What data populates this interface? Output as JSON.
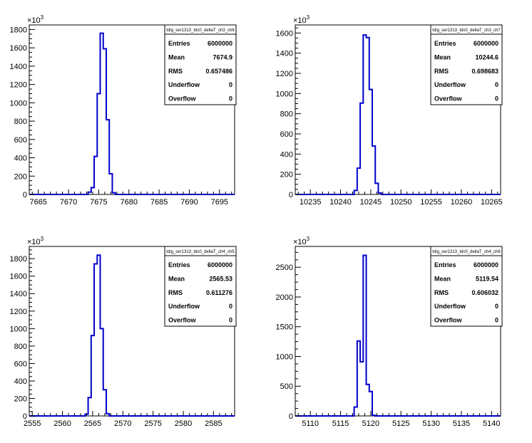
{
  "chart_data": [
    {
      "type": "histogram",
      "stats": {
        "title": "tdig_ser1313_tdc0_deltaT_ch3_ch6",
        "rows": [
          {
            "label": "Entries",
            "value": "6000000"
          },
          {
            "label": "Mean",
            "value": "7674.9"
          },
          {
            "label": "RMS",
            "value": "0.657486"
          },
          {
            "label": "Underflow",
            "value": "0"
          },
          {
            "label": "Overflow",
            "value": "0"
          }
        ]
      },
      "y_exponent": "10",
      "y_exponent_power": "3",
      "xlim": [
        7663.5,
        7697.5
      ],
      "ylim": [
        0,
        1850
      ],
      "xticks": [
        7665,
        7670,
        7675,
        7680,
        7685,
        7690,
        7695
      ],
      "yticks": [
        0,
        200,
        400,
        600,
        800,
        1000,
        1200,
        1400,
        1600,
        1800
      ],
      "bin_width": 0.5,
      "bins": [
        {
          "x": 7673.5,
          "y": 25
        },
        {
          "x": 7674.0,
          "y": 75
        },
        {
          "x": 7674.5,
          "y": 415
        },
        {
          "x": 7675.0,
          "y": 1100
        },
        {
          "x": 7675.5,
          "y": 1760
        },
        {
          "x": 7676.0,
          "y": 1590
        },
        {
          "x": 7676.5,
          "y": 815
        },
        {
          "x": 7677.0,
          "y": 225
        },
        {
          "x": 7677.5,
          "y": 18
        }
      ]
    },
    {
      "type": "histogram",
      "stats": {
        "title": "tdig_ser1313_tdc0_deltaT_ch3_ch7",
        "rows": [
          {
            "label": "Entries",
            "value": "6000000"
          },
          {
            "label": "Mean",
            "value": "10244.6"
          },
          {
            "label": "RMS",
            "value": "0.698683"
          },
          {
            "label": "Underflow",
            "value": "0"
          },
          {
            "label": "Overflow",
            "value": "0"
          }
        ]
      },
      "y_exponent": "10",
      "y_exponent_power": "3",
      "xlim": [
        10232.5,
        10266.5
      ],
      "ylim": [
        0,
        1680
      ],
      "xticks": [
        10235,
        10240,
        10245,
        10250,
        10255,
        10260,
        10265
      ],
      "yticks": [
        0,
        200,
        400,
        600,
        800,
        1000,
        1200,
        1400,
        1600
      ],
      "bin_width": 0.5,
      "bins": [
        {
          "x": 10242.5,
          "y": 40
        },
        {
          "x": 10243.0,
          "y": 260
        },
        {
          "x": 10243.5,
          "y": 905
        },
        {
          "x": 10244.0,
          "y": 1580
        },
        {
          "x": 10244.5,
          "y": 1555
        },
        {
          "x": 10245.0,
          "y": 1040
        },
        {
          "x": 10245.5,
          "y": 480
        },
        {
          "x": 10246.0,
          "y": 110
        },
        {
          "x": 10246.5,
          "y": 15
        }
      ]
    },
    {
      "type": "histogram",
      "stats": {
        "title": "tdig_ser1313_tdc0_deltaT_ch4_ch5",
        "rows": [
          {
            "label": "Entries",
            "value": "6000000"
          },
          {
            "label": "Mean",
            "value": "2565.53"
          },
          {
            "label": "RMS",
            "value": "0.611276"
          },
          {
            "label": "Underflow",
            "value": "0"
          },
          {
            "label": "Overflow",
            "value": "0"
          }
        ]
      },
      "y_exponent": "10",
      "y_exponent_power": "3",
      "xlim": [
        2554.5,
        2588.5
      ],
      "ylim": [
        0,
        1940
      ],
      "xticks": [
        2555,
        2560,
        2565,
        2570,
        2575,
        2580,
        2585
      ],
      "yticks": [
        0,
        200,
        400,
        600,
        800,
        1000,
        1200,
        1400,
        1600,
        1800
      ],
      "bin_width": 0.5,
      "bins": [
        {
          "x": 2564.0,
          "y": 20
        },
        {
          "x": 2564.5,
          "y": 210
        },
        {
          "x": 2565.0,
          "y": 920
        },
        {
          "x": 2565.5,
          "y": 1740
        },
        {
          "x": 2566.0,
          "y": 1840
        },
        {
          "x": 2566.5,
          "y": 1000
        },
        {
          "x": 2567.0,
          "y": 300
        },
        {
          "x": 2567.5,
          "y": 25
        }
      ]
    },
    {
      "type": "histogram",
      "stats": {
        "title": "tdig_ser1313_tdc0_deltaT_ch4_ch6",
        "rows": [
          {
            "label": "Entries",
            "value": "6000000"
          },
          {
            "label": "Mean",
            "value": "5119.54"
          },
          {
            "label": "RMS",
            "value": "0.606032"
          },
          {
            "label": "Underflow",
            "value": "0"
          },
          {
            "label": "Overflow",
            "value": "0"
          }
        ]
      },
      "y_exponent": "10",
      "y_exponent_power": "3",
      "xlim": [
        5107.5,
        5141.5
      ],
      "ylim": [
        0,
        2850
      ],
      "xticks": [
        5110,
        5115,
        5120,
        5125,
        5130,
        5135,
        5140
      ],
      "yticks": [
        0,
        500,
        1000,
        1500,
        2000,
        2500
      ],
      "bin_width": 0.5,
      "bins": [
        {
          "x": 5117.5,
          "y": 150
        },
        {
          "x": 5118.0,
          "y": 1260
        },
        {
          "x": 5118.5,
          "y": 910
        },
        {
          "x": 5119.0,
          "y": 2700
        },
        {
          "x": 5119.5,
          "y": 530
        },
        {
          "x": 5120.0,
          "y": 410
        },
        {
          "x": 5120.5,
          "y": 10
        }
      ]
    }
  ]
}
